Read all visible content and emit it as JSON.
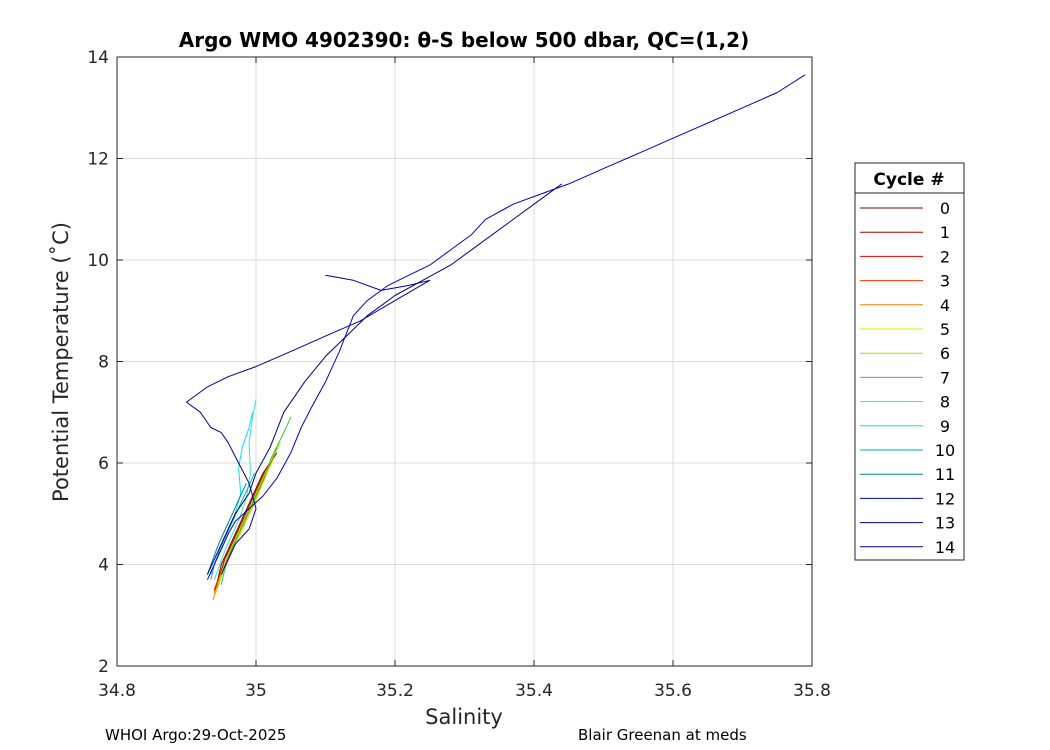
{
  "chart_data": {
    "type": "line",
    "title": "Argo WMO 4902390: θ-S below 500 dbar,  QC=(1,2)",
    "xlabel": "Salinity",
    "ylabel": "Potential Temperature (˚C)",
    "xlim": [
      34.8,
      35.8
    ],
    "ylim": [
      2,
      14
    ],
    "xticks": [
      34.8,
      35,
      35.2,
      35.4,
      35.6,
      35.8
    ],
    "xtick_labels": [
      "34.8",
      "35",
      "35.2",
      "35.4",
      "35.6",
      "35.8"
    ],
    "yticks": [
      2,
      4,
      6,
      8,
      10,
      12,
      14
    ],
    "ytick_labels": [
      "2",
      "4",
      "6",
      "8",
      "10",
      "12",
      "14"
    ],
    "grid": true,
    "legend": {
      "title": "Cycle #",
      "position": "right"
    },
    "series": [
      {
        "name": "0",
        "color": "#800000",
        "x": [
          34.94,
          34.945,
          34.95,
          34.96,
          34.97,
          34.98,
          34.99,
          35.0,
          35.01,
          35.02,
          35.03
        ],
        "y": [
          3.4,
          3.7,
          4.0,
          4.3,
          4.6,
          4.9,
          5.2,
          5.5,
          5.8,
          6.0,
          6.2
        ]
      },
      {
        "name": "1",
        "color": "#b30000",
        "x": [
          34.94,
          34.948,
          34.955,
          34.965,
          34.975,
          34.985,
          34.995,
          35.005,
          35.015,
          35.025
        ],
        "y": [
          3.5,
          3.8,
          4.1,
          4.4,
          4.7,
          5.0,
          5.3,
          5.6,
          5.9,
          6.1
        ]
      },
      {
        "name": "2",
        "color": "#e60000",
        "x": [
          34.942,
          34.95,
          34.958,
          34.968,
          34.978,
          34.988,
          34.998,
          35.008,
          35.018,
          35.03
        ],
        "y": [
          3.5,
          3.8,
          4.1,
          4.4,
          4.7,
          5.0,
          5.3,
          5.6,
          5.9,
          6.3
        ]
      },
      {
        "name": "3",
        "color": "#ff3300",
        "x": [
          34.94,
          34.947,
          34.956,
          34.966,
          34.976,
          34.986,
          34.996,
          35.006,
          35.014
        ],
        "y": [
          3.45,
          3.75,
          4.05,
          4.35,
          4.65,
          4.95,
          5.25,
          5.55,
          5.85
        ]
      },
      {
        "name": "4",
        "color": "#ff8000",
        "x": [
          34.938,
          34.946,
          34.954,
          34.964,
          34.974,
          34.984,
          34.994,
          35.004,
          35.012,
          35.02
        ],
        "y": [
          3.3,
          3.6,
          3.9,
          4.2,
          4.5,
          4.8,
          5.1,
          5.4,
          5.7,
          5.95
        ]
      },
      {
        "name": "5",
        "color": "#e6e600",
        "x": [
          34.94,
          34.948,
          34.957,
          34.967,
          34.977,
          34.987,
          34.997,
          35.007,
          35.016,
          35.026
        ],
        "y": [
          3.4,
          3.7,
          4.0,
          4.3,
          4.6,
          4.9,
          5.2,
          5.5,
          5.8,
          6.1
        ]
      },
      {
        "name": "6",
        "color": "#99e600",
        "x": [
          34.945,
          34.952,
          34.96,
          34.97,
          34.98,
          34.99,
          35.0,
          35.01,
          35.02,
          35.035
        ],
        "y": [
          3.6,
          3.9,
          4.2,
          4.5,
          4.8,
          5.1,
          5.4,
          5.7,
          6.0,
          6.4
        ]
      },
      {
        "name": "7",
        "color": "#33cc33",
        "x": [
          34.95,
          34.955,
          34.962,
          34.972,
          34.982,
          34.992,
          35.002,
          35.012,
          35.022,
          35.04,
          35.05
        ],
        "y": [
          3.6,
          3.9,
          4.2,
          4.5,
          4.8,
          5.1,
          5.4,
          5.7,
          6.1,
          6.6,
          6.9
        ]
      },
      {
        "name": "8",
        "color": "#33e6cc",
        "x": [
          34.94,
          34.948,
          34.956,
          34.966,
          34.976,
          34.986,
          34.992,
          34.99,
          34.995,
          35.0
        ],
        "y": [
          3.7,
          4.0,
          4.3,
          4.6,
          4.9,
          5.3,
          5.8,
          6.4,
          6.9,
          7.25
        ]
      },
      {
        "name": "9",
        "color": "#00e6e6",
        "x": [
          34.935,
          34.943,
          34.95,
          34.96,
          34.97,
          34.978,
          34.975,
          34.98,
          34.99,
          34.995
        ],
        "y": [
          3.8,
          4.1,
          4.4,
          4.7,
          5.0,
          5.4,
          5.9,
          6.3,
          6.7,
          7.0
        ]
      },
      {
        "name": "10",
        "color": "#00b3b3",
        "x": [
          34.935,
          34.94,
          34.948,
          34.958,
          34.968,
          34.978,
          34.988,
          34.998
        ],
        "y": [
          3.7,
          4.0,
          4.3,
          4.6,
          4.9,
          5.2,
          5.5,
          5.8
        ]
      },
      {
        "name": "11",
        "color": "#0080a0",
        "x": [
          34.93,
          34.938,
          34.946,
          34.956,
          34.966,
          34.976,
          34.986
        ],
        "y": [
          3.8,
          4.1,
          4.4,
          4.7,
          5.0,
          5.3,
          5.6
        ]
      },
      {
        "name": "12",
        "color": "#0000cc",
        "x": [
          34.93,
          34.94,
          34.95,
          34.96,
          34.97,
          34.99,
          35.01,
          35.03,
          35.05,
          35.065,
          35.08,
          35.1,
          35.12,
          35.14,
          35.16,
          35.19,
          35.22,
          35.25,
          35.28,
          35.31,
          35.33,
          35.37,
          35.41,
          35.45,
          35.5,
          35.55,
          35.6,
          35.65,
          35.7,
          35.75,
          35.79
        ],
        "y": [
          3.7,
          4.0,
          4.3,
          4.6,
          4.85,
          5.1,
          5.35,
          5.7,
          6.2,
          6.7,
          7.1,
          7.6,
          8.2,
          8.9,
          9.2,
          9.5,
          9.7,
          9.9,
          10.2,
          10.5,
          10.8,
          11.1,
          11.3,
          11.5,
          11.8,
          12.1,
          12.4,
          12.7,
          13.0,
          13.3,
          13.65
        ]
      },
      {
        "name": "13",
        "color": "#000080",
        "x": [
          34.93,
          34.94,
          34.95,
          34.96,
          34.97,
          34.99,
          35.0,
          35.02,
          35.04,
          35.07,
          35.1,
          35.13,
          35.16,
          35.2,
          35.24,
          35.28,
          35.32,
          35.36,
          35.4,
          35.44
        ],
        "y": [
          3.8,
          4.1,
          4.4,
          4.7,
          5.0,
          5.4,
          5.8,
          6.3,
          7.0,
          7.6,
          8.1,
          8.5,
          8.9,
          9.3,
          9.6,
          9.9,
          10.3,
          10.7,
          11.1,
          11.5
        ]
      },
      {
        "name": "14",
        "color": "#000099",
        "x": [
          34.95,
          34.96,
          34.97,
          34.99,
          35.0,
          34.99,
          34.975,
          34.96,
          34.95,
          34.935,
          34.92,
          34.9,
          34.93,
          34.96,
          35.0,
          35.05,
          35.1,
          35.15,
          35.2,
          35.25,
          35.22,
          35.18,
          35.14,
          35.1
        ],
        "y": [
          3.8,
          4.1,
          4.4,
          4.7,
          5.1,
          5.6,
          6.0,
          6.4,
          6.6,
          6.7,
          7.0,
          7.2,
          7.5,
          7.7,
          7.9,
          8.2,
          8.5,
          8.8,
          9.2,
          9.6,
          9.5,
          9.4,
          9.6,
          9.7
        ]
      }
    ]
  },
  "footer": {
    "left": "WHOI Argo:29-Oct-2025",
    "right": "Blair Greenan at meds"
  }
}
